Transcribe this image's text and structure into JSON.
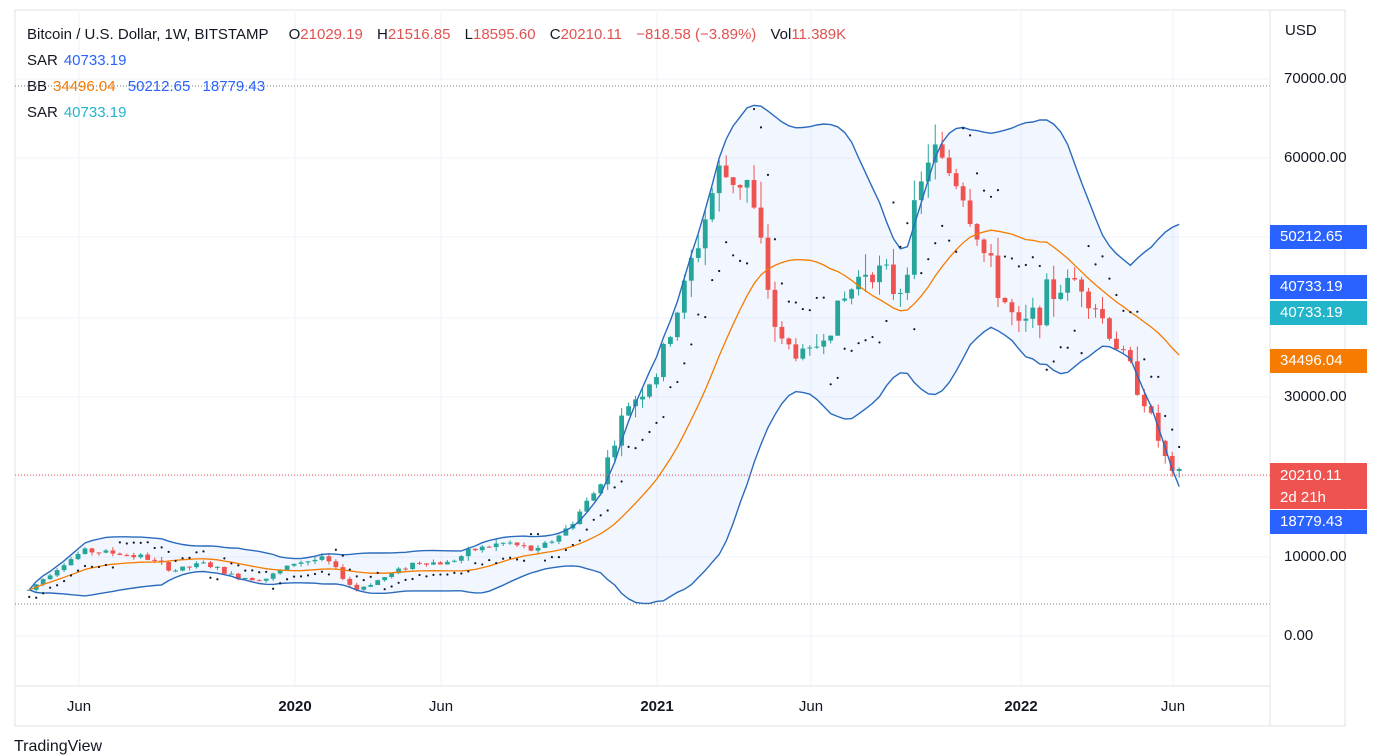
{
  "legend": {
    "symbol": "Bitcoin / U.S. Dollar, 1W, BITSTAMP",
    "o_label": "O",
    "o_value": "21029.19",
    "h_label": "H",
    "h_value": "21516.85",
    "l_label": "L",
    "l_value": "18595.60",
    "c_label": "C",
    "c_value": "20210.11",
    "change": "−818.58 (−3.89%)",
    "vol_label": "Vol",
    "vol_value": "11.389K",
    "sar1_label": "SAR",
    "sar1_value": "40733.19",
    "bb_label": "BB",
    "bb_mid": "34496.04",
    "bb_upper": "50212.65",
    "bb_lower": "18779.43",
    "sar2_label": "SAR",
    "sar2_value": "40733.19"
  },
  "axis": {
    "unit": "USD",
    "y_ticks": [
      "70000.00",
      "60000.00",
      "30000.00",
      "10000.00",
      "0.00"
    ],
    "x_ticks": [
      "Jun",
      "2020",
      "Jun",
      "2021",
      "Jun",
      "2022",
      "Jun"
    ]
  },
  "price_tags": {
    "bb_upper": "50212.65",
    "sar_blue": "40733.19",
    "sar_cyan": "40733.19",
    "bb_mid": "34496.04",
    "last_price": "20210.11",
    "countdown": "2d 21h",
    "bb_lower": "18779.43"
  },
  "brand": {
    "name": "TradingView"
  },
  "colors": {
    "up": "#26a69a",
    "down": "#ef5350",
    "band": "#2962ff",
    "basis": "#f57c00",
    "band_fill": "#e8f1fb",
    "sar": "#131722"
  },
  "chart_data": {
    "type": "candlestick",
    "title": "Bitcoin / U.S. Dollar, 1W, BITSTAMP",
    "ylabel": "USD",
    "y_ticks": [
      0,
      10000,
      30000,
      60000,
      70000
    ],
    "x_labels": [
      "Jun",
      "2020",
      "Jun",
      "2021",
      "Jun",
      "2022",
      "Jun"
    ],
    "ohlc_last": {
      "open": 21029.19,
      "high": 21516.85,
      "low": 18595.6,
      "close": 20210.11,
      "volume": "11.389K"
    },
    "indicators": {
      "bollinger": {
        "basis": 34496.04,
        "upper": 50212.65,
        "lower": 18779.43
      },
      "sar": 40733.19
    },
    "close_path": [
      {
        "t": "2019-04",
        "close": 5200
      },
      {
        "t": "2019-05",
        "close": 8300
      },
      {
        "t": "2019-06",
        "close": 10800
      },
      {
        "t": "2019-07",
        "close": 10500
      },
      {
        "t": "2019-08",
        "close": 10000
      },
      {
        "t": "2019-09",
        "close": 8300
      },
      {
        "t": "2019-10",
        "close": 9200
      },
      {
        "t": "2019-11",
        "close": 7500
      },
      {
        "t": "2019-12",
        "close": 7200
      },
      {
        "t": "2020-01",
        "close": 9300
      },
      {
        "t": "2020-02",
        "close": 9800
      },
      {
        "t": "2020-03",
        "close": 5800
      },
      {
        "t": "2020-04",
        "close": 7500
      },
      {
        "t": "2020-05",
        "close": 9400
      },
      {
        "t": "2020-06",
        "close": 9200
      },
      {
        "t": "2020-07",
        "close": 11000
      },
      {
        "t": "2020-08",
        "close": 11800
      },
      {
        "t": "2020-09",
        "close": 10700
      },
      {
        "t": "2020-10",
        "close": 13500
      },
      {
        "t": "2020-11",
        "close": 18500
      },
      {
        "t": "2020-12",
        "close": 28900
      },
      {
        "t": "2021-01",
        "close": 33000
      },
      {
        "t": "2021-02",
        "close": 45000
      },
      {
        "t": "2021-03",
        "close": 58000
      },
      {
        "t": "2021-04",
        "close": 57000
      },
      {
        "t": "2021-05",
        "close": 37000
      },
      {
        "t": "2021-06",
        "close": 35000
      },
      {
        "t": "2021-07",
        "close": 41000
      },
      {
        "t": "2021-08",
        "close": 47000
      },
      {
        "t": "2021-09",
        "close": 43000
      },
      {
        "t": "2021-10",
        "close": 61000
      },
      {
        "t": "2021-11",
        "close": 57000
      },
      {
        "t": "2021-12",
        "close": 46000
      },
      {
        "t": "2022-01",
        "close": 38000
      },
      {
        "t": "2022-02",
        "close": 43000
      },
      {
        "t": "2022-03",
        "close": 45000
      },
      {
        "t": "2022-04",
        "close": 38000
      },
      {
        "t": "2022-05",
        "close": 31000
      },
      {
        "t": "2022-06",
        "close": 20210
      }
    ]
  }
}
